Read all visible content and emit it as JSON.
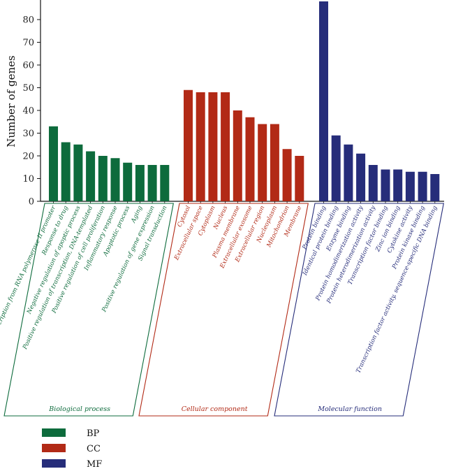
{
  "chart_data": {
    "type": "bar",
    "ylabel": "Number of genes",
    "xlabel": "",
    "ylim": [
      0,
      88
    ],
    "yticks": [
      0,
      10,
      20,
      30,
      40,
      50,
      60,
      70,
      80
    ],
    "groups": [
      {
        "key": "BP",
        "name": "Biological process",
        "color": "#0d6b3c",
        "categories": [
          "Positive regulation of transcription from RNA polymerase II promoter",
          "Response to drug",
          "Negative regulation of apoptic process",
          "Positive regulation of transcription, DNA-templated",
          "Positive regulation of cell proliferation",
          "Inflammatory response",
          "Apoptotic process",
          "Aging",
          "Positive regulation of gene expression",
          "Signal transduction"
        ],
        "values": [
          33,
          26,
          25,
          22,
          20,
          19,
          17,
          16,
          16,
          16
        ]
      },
      {
        "key": "CC",
        "name": "Cellular component",
        "color": "#b22a16",
        "categories": [
          "Cytosol",
          "Extracellular space",
          "Cytoplasm",
          "Nucleus",
          "Plasma membrane",
          "Extracellular exosome",
          "Extracellular region",
          "Nucleoplasm",
          "Mitochondrion",
          "Membrane"
        ],
        "values": [
          49,
          48,
          48,
          48,
          40,
          37,
          34,
          34,
          23,
          20
        ]
      },
      {
        "key": "MF",
        "name": "Molecular function",
        "color": "#262d7a",
        "categories": [
          "Protein binding",
          "Identical protein binding",
          "Enzyme binding",
          "Protein homodimerization activity",
          "Protein heterodimerization activity",
          "Transcription factor binding",
          "Zinc ion binding",
          "Cytokine activity",
          "Protein kinase binding",
          "Transcription factor activity, sequence-specific DNA binding"
        ],
        "values": [
          88,
          29,
          25,
          21,
          16,
          14,
          14,
          13,
          13,
          12
        ]
      }
    ],
    "legend": [
      {
        "label": "BP",
        "color": "#0d6b3c"
      },
      {
        "label": "CC",
        "color": "#b22a16"
      },
      {
        "label": "MF",
        "color": "#262d7a"
      }
    ],
    "legend_position": "bottom-left"
  }
}
